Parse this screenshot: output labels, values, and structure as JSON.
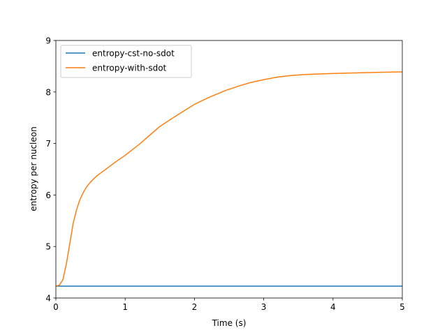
{
  "chart_data": {
    "type": "line",
    "title": "",
    "xlabel": "Time (s)",
    "ylabel": "entropy per nucleon",
    "xlim": [
      0,
      5
    ],
    "ylim": [
      4,
      9
    ],
    "xticks": [
      0,
      1,
      2,
      3,
      4,
      5
    ],
    "yticks": [
      4,
      5,
      6,
      7,
      8,
      9
    ],
    "xtick_labels": [
      "0",
      "1",
      "2",
      "3",
      "4",
      "5"
    ],
    "ytick_labels": [
      "4",
      "5",
      "6",
      "7",
      "8",
      "9"
    ],
    "grid": false,
    "legend_position": "top-left",
    "series": [
      {
        "name": "entropy-cst-no-sdot",
        "color": "#1f77b4",
        "x": [
          0,
          5
        ],
        "y": [
          4.23,
          4.23
        ]
      },
      {
        "name": "entropy-with-sdot",
        "color": "#ff7f0e",
        "x": [
          0,
          0.05,
          0.1,
          0.15,
          0.2,
          0.25,
          0.3,
          0.35,
          0.4,
          0.45,
          0.5,
          0.55,
          0.6,
          0.65,
          0.75,
          0.85,
          1.0,
          1.2,
          1.5,
          1.75,
          2.0,
          2.2,
          2.45,
          2.65,
          2.8,
          3.0,
          3.2,
          3.4,
          3.6,
          3.8,
          4.0,
          4.3,
          4.6,
          5.0
        ],
        "y": [
          4.23,
          4.25,
          4.35,
          4.65,
          5.05,
          5.45,
          5.72,
          5.92,
          6.06,
          6.17,
          6.25,
          6.32,
          6.38,
          6.43,
          6.53,
          6.63,
          6.77,
          6.98,
          7.33,
          7.55,
          7.76,
          7.89,
          8.03,
          8.12,
          8.18,
          8.24,
          8.29,
          8.32,
          8.34,
          8.35,
          8.36,
          8.37,
          8.38,
          8.39
        ]
      }
    ]
  }
}
